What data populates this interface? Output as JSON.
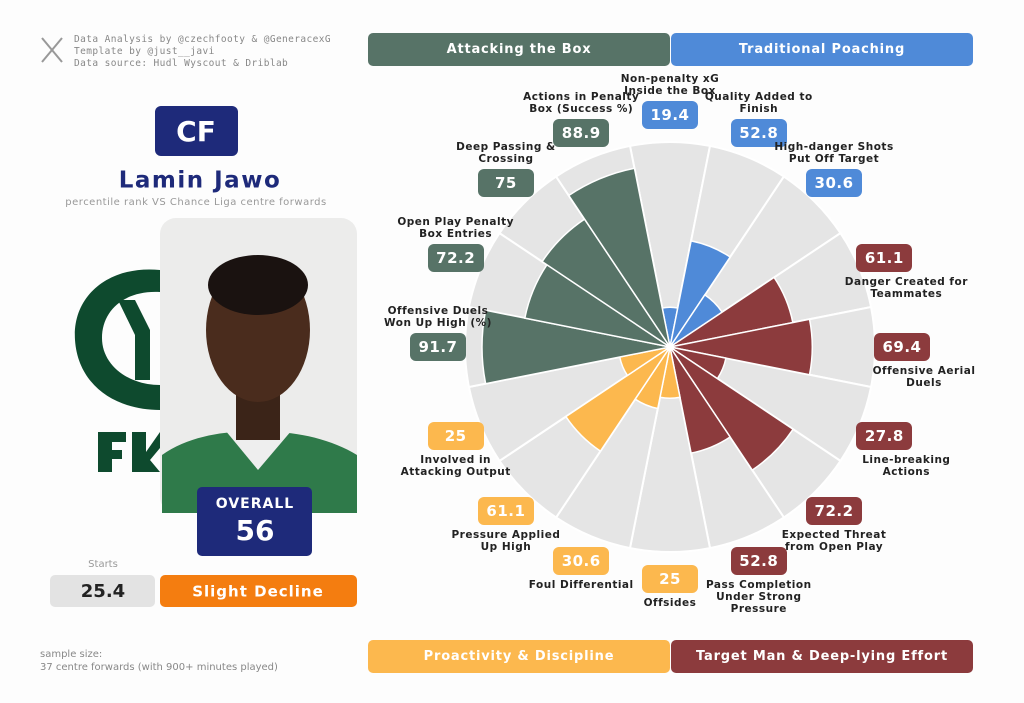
{
  "credits": [
    "Data Analysis by @czechfooty & @GeneracexG",
    "Template by @just__javi",
    "Data source: Hudl Wyscout & Driblab"
  ],
  "player": {
    "position": "CF",
    "name": "Lamin Jawo",
    "subtitle": "percentile rank VS Chance Liga centre forwards",
    "overall_label": "OVERALL",
    "overall": 56,
    "starts_label": "Starts",
    "starts": 25.4,
    "trend": "Slight Decline"
  },
  "sample_size": [
    "sample size:",
    "37 centre forwards (with 900+ minutes played)"
  ],
  "chart_data": {
    "type": "polar_bar",
    "ylim": [
      0,
      100
    ],
    "series": [
      {
        "name": "Traditional Poaching",
        "color": "#4f8ad8",
        "categories": [
          "Non-penalty xG Inside the Box",
          "Quality Added to Finish",
          "High-danger Shots Put Off Target"
        ],
        "values": [
          19.4,
          52.8,
          30.6
        ]
      },
      {
        "name": "Target Man & Deep-lying Effort",
        "color": "#8c3b3d",
        "categories": [
          "Danger Created for Teammates",
          "Offensive Aerial Duels",
          "Line-breaking Actions",
          "Expected Threat from Open Play",
          "Pass Completion Under Strong Pressure"
        ],
        "values": [
          61.1,
          69.4,
          27.8,
          72.2,
          52.8
        ]
      },
      {
        "name": "Proactivity & Discipline",
        "color": "#fcb84e",
        "categories": [
          "Offsides",
          "Foul Differential",
          "Pressure Applied Up High",
          "Involved in Attacking Output"
        ],
        "values": [
          25,
          30.6,
          61.1,
          25
        ]
      },
      {
        "name": "Attacking the Box",
        "color": "#577367",
        "categories": [
          "Offensive Duels Won Up High (%)",
          "Open Play Penalty Box Entries",
          "Deep Passing & Crossing",
          "Actions in Penalty Box (Success %)"
        ],
        "values": [
          91.7,
          72.2,
          75,
          88.9
        ]
      }
    ]
  }
}
